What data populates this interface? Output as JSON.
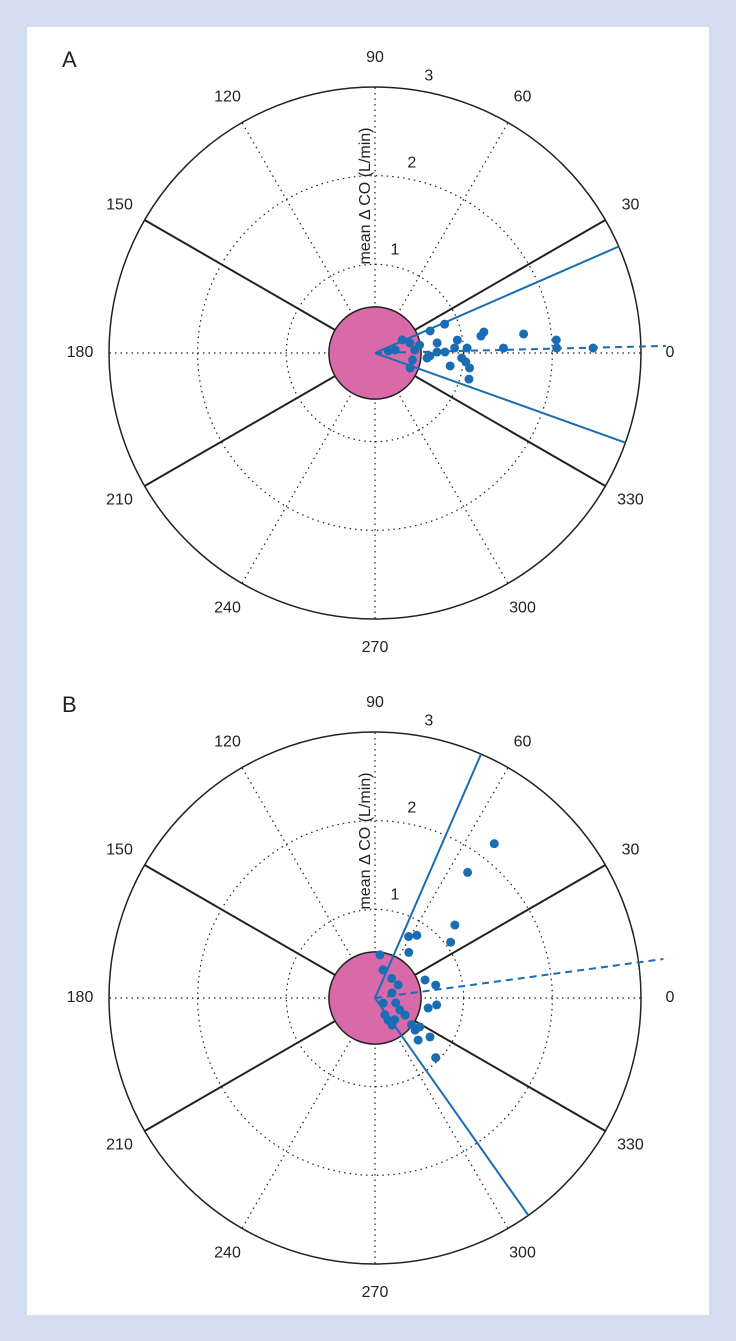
{
  "chart_data": [
    {
      "type": "polar",
      "panel": "A",
      "r_label": "mean Δ CO (L/min)",
      "rlim": [
        0,
        3
      ],
      "rticks": [
        1,
        2,
        3
      ],
      "thetaticks": [
        0,
        30,
        60,
        90,
        120,
        150,
        180,
        210,
        240,
        270,
        300,
        330
      ],
      "sector_angles": [
        30,
        150
      ],
      "center_radius": 0.52,
      "limit_angles": [
        23.6,
        -19.7
      ],
      "mean_angle": 1.4,
      "color": "#1a6db5",
      "center_color": "#d96aa9",
      "series": [
        {
          "color": "#1a6db5",
          "theta": [
            22.5,
            21.8,
            10.9,
            9.1,
            7.3,
            4.1,
            1.6,
            1.3,
            2.2,
            3.1,
            3.6,
            0.8,
            0.9,
            -3.1,
            4.3,
            15.9,
            25.7,
            8.5,
            8.7,
            -10.4,
            -23.2,
            -5.5,
            -9.8,
            -3.3,
            -5.6,
            -9.0,
            -15.5,
            9.2,
            10.1,
            8.9
          ],
          "r": [
            0.85,
            0.67,
            1.25,
            1.21,
            1.69,
            2.05,
            2.05,
            2.46,
            1.45,
            1.04,
            0.9,
            0.79,
            0.7,
            0.62,
            0.45,
            0.41,
            0.34,
            0.23,
            0.15,
            0.43,
            0.43,
            0.59,
            0.86,
            0.98,
            1.03,
            1.08,
            1.1,
            0.71,
            0.51,
            0.94
          ]
        }
      ]
    },
    {
      "type": "polar",
      "panel": "B",
      "r_label": "mean Δ CO (L/min)",
      "rlim": [
        0,
        3
      ],
      "rticks": [
        1,
        2,
        3
      ],
      "thetaticks": [
        0,
        30,
        60,
        90,
        120,
        150,
        180,
        210,
        240,
        270,
        300,
        330
      ],
      "sector_angles": [
        30,
        150
      ],
      "center_radius": 0.52,
      "limit_angles": [
        66.5,
        -54.8
      ],
      "mean_angle": 7.7,
      "color": "#1a6db5",
      "center_color": "#d96aa9",
      "series": [
        {
          "color": "#1a6db5",
          "theta": [
            52.3,
            53.6,
            42.4,
            36.4,
            56.3,
            61.3,
            53.5,
            83.4,
            74.1,
            49.6,
            29.5,
            16.4,
            -13.4,
            -25.6,
            -59.4,
            -57.8,
            -29.5,
            -32.8,
            -35.3,
            -44.5,
            -44.3,
            -36.1,
            -6.4,
            -10.7,
            12.0,
            19.8,
            -38.7,
            -59.5,
            -47.7,
            -32.0
          ],
          "r": [
            2.2,
            1.76,
            1.22,
            1.06,
            0.85,
            0.79,
            0.64,
            0.49,
            0.33,
            0.29,
            0.3,
            0.2,
            0.24,
            0.31,
            0.29,
            0.36,
            0.39,
            0.6,
            0.76,
            0.96,
            0.68,
            0.51,
            0.7,
            0.61,
            0.7,
            0.6,
            0.58,
            0.22,
            0.33,
            0.11
          ]
        }
      ]
    }
  ]
}
